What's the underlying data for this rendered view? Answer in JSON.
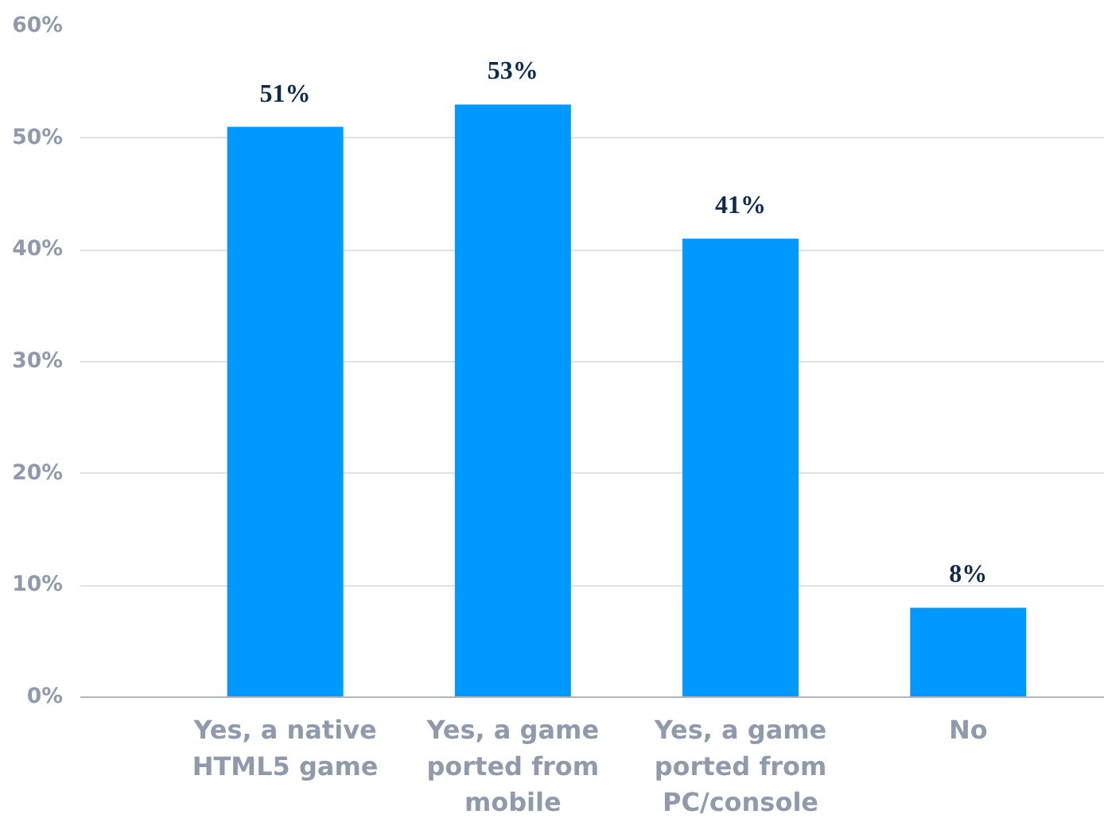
{
  "chart_data": {
    "type": "bar",
    "categories": [
      "Yes, a native\nHTML5 game",
      "Yes, a game\nported from\nmobile",
      "Yes, a game\nported from\nPC/console",
      "No"
    ],
    "values": [
      51,
      53,
      41,
      8
    ],
    "color": "#0099ff",
    "value_labels": [
      "51%",
      "53%",
      "41%",
      "8%"
    ],
    "ylim": [
      0,
      60
    ],
    "yticks": [
      {
        "value": 0,
        "label": "0%"
      },
      {
        "value": 10,
        "label": "10%"
      },
      {
        "value": 20,
        "label": "20%"
      },
      {
        "value": 30,
        "label": "30%"
      },
      {
        "value": 40,
        "label": "40%"
      },
      {
        "value": 50,
        "label": "50%"
      },
      {
        "value": 60,
        "label": "60%"
      }
    ],
    "grid": "y"
  }
}
